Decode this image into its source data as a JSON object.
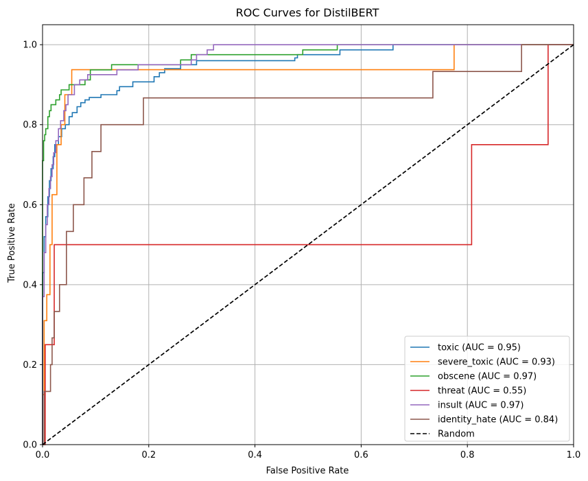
{
  "chart_data": {
    "type": "line",
    "title": "ROC Curves for DistilBERT",
    "xlabel": "False Positive Rate",
    "ylabel": "True Positive Rate",
    "xlim": [
      0,
      1
    ],
    "ylim": [
      0,
      1.05
    ],
    "xticks": [
      "0.0",
      "0.2",
      "0.4",
      "0.6",
      "0.8",
      "1.0"
    ],
    "yticks": [
      "0.0",
      "0.2",
      "0.4",
      "0.6",
      "0.8",
      "1.0"
    ],
    "grid": true,
    "legend_position": "lower-right",
    "series": [
      {
        "name": "toxic (AUC = 0.95)",
        "color": "#1f77b4",
        "style": "solid",
        "points": [
          [
            0,
            0
          ],
          [
            0,
            0.43
          ],
          [
            0.003,
            0.43
          ],
          [
            0.003,
            0.52
          ],
          [
            0.006,
            0.52
          ],
          [
            0.006,
            0.57
          ],
          [
            0.01,
            0.57
          ],
          [
            0.01,
            0.62
          ],
          [
            0.013,
            0.62
          ],
          [
            0.013,
            0.66
          ],
          [
            0.016,
            0.66
          ],
          [
            0.016,
            0.69
          ],
          [
            0.02,
            0.69
          ],
          [
            0.02,
            0.72
          ],
          [
            0.023,
            0.72
          ],
          [
            0.023,
            0.75
          ],
          [
            0.03,
            0.75
          ],
          [
            0.03,
            0.77
          ],
          [
            0.036,
            0.77
          ],
          [
            0.036,
            0.79
          ],
          [
            0.043,
            0.79
          ],
          [
            0.043,
            0.8
          ],
          [
            0.05,
            0.8
          ],
          [
            0.05,
            0.82
          ],
          [
            0.056,
            0.82
          ],
          [
            0.056,
            0.83
          ],
          [
            0.065,
            0.83
          ],
          [
            0.065,
            0.845
          ],
          [
            0.072,
            0.845
          ],
          [
            0.072,
            0.855
          ],
          [
            0.08,
            0.855
          ],
          [
            0.08,
            0.862
          ],
          [
            0.088,
            0.862
          ],
          [
            0.088,
            0.868
          ],
          [
            0.11,
            0.868
          ],
          [
            0.11,
            0.875
          ],
          [
            0.14,
            0.875
          ],
          [
            0.14,
            0.885
          ],
          [
            0.145,
            0.885
          ],
          [
            0.145,
            0.895
          ],
          [
            0.17,
            0.895
          ],
          [
            0.17,
            0.907
          ],
          [
            0.21,
            0.907
          ],
          [
            0.21,
            0.92
          ],
          [
            0.22,
            0.92
          ],
          [
            0.22,
            0.93
          ],
          [
            0.23,
            0.93
          ],
          [
            0.23,
            0.94
          ],
          [
            0.26,
            0.94
          ],
          [
            0.26,
            0.95
          ],
          [
            0.29,
            0.95
          ],
          [
            0.29,
            0.96
          ],
          [
            0.475,
            0.96
          ],
          [
            0.475,
            0.967
          ],
          [
            0.48,
            0.967
          ],
          [
            0.48,
            0.975
          ],
          [
            0.56,
            0.975
          ],
          [
            0.56,
            0.987
          ],
          [
            0.66,
            0.987
          ],
          [
            0.66,
            1.0
          ],
          [
            1.0,
            1.0
          ]
        ]
      },
      {
        "name": "severe_toxic (AUC = 0.93)",
        "color": "#ff7f0e",
        "style": "solid",
        "points": [
          [
            0,
            0
          ],
          [
            0,
            0.125
          ],
          [
            0.003,
            0.125
          ],
          [
            0.003,
            0.31
          ],
          [
            0.008,
            0.31
          ],
          [
            0.008,
            0.375
          ],
          [
            0.014,
            0.375
          ],
          [
            0.014,
            0.5
          ],
          [
            0.018,
            0.5
          ],
          [
            0.018,
            0.625
          ],
          [
            0.027,
            0.625
          ],
          [
            0.027,
            0.75
          ],
          [
            0.035,
            0.75
          ],
          [
            0.035,
            0.8
          ],
          [
            0.042,
            0.8
          ],
          [
            0.042,
            0.875
          ],
          [
            0.055,
            0.875
          ],
          [
            0.055,
            0.9375
          ],
          [
            0.775,
            0.9375
          ],
          [
            0.775,
            1.0
          ],
          [
            1.0,
            1.0
          ]
        ]
      },
      {
        "name": "obscene (AUC = 0.97)",
        "color": "#2ca02c",
        "style": "solid",
        "points": [
          [
            0,
            0
          ],
          [
            0,
            0.71
          ],
          [
            0.002,
            0.71
          ],
          [
            0.002,
            0.76
          ],
          [
            0.004,
            0.76
          ],
          [
            0.004,
            0.775
          ],
          [
            0.006,
            0.775
          ],
          [
            0.006,
            0.79
          ],
          [
            0.01,
            0.79
          ],
          [
            0.01,
            0.82
          ],
          [
            0.013,
            0.82
          ],
          [
            0.013,
            0.835
          ],
          [
            0.016,
            0.835
          ],
          [
            0.016,
            0.85
          ],
          [
            0.025,
            0.85
          ],
          [
            0.025,
            0.862
          ],
          [
            0.032,
            0.862
          ],
          [
            0.032,
            0.875
          ],
          [
            0.035,
            0.875
          ],
          [
            0.035,
            0.887
          ],
          [
            0.05,
            0.887
          ],
          [
            0.05,
            0.9
          ],
          [
            0.08,
            0.9
          ],
          [
            0.08,
            0.912
          ],
          [
            0.09,
            0.912
          ],
          [
            0.09,
            0.937
          ],
          [
            0.13,
            0.937
          ],
          [
            0.13,
            0.95
          ],
          [
            0.26,
            0.95
          ],
          [
            0.26,
            0.962
          ],
          [
            0.28,
            0.962
          ],
          [
            0.28,
            0.975
          ],
          [
            0.49,
            0.975
          ],
          [
            0.49,
            0.987
          ],
          [
            0.555,
            0.987
          ],
          [
            0.555,
            1.0
          ],
          [
            1.0,
            1.0
          ]
        ]
      },
      {
        "name": "threat (AUC = 0.55)",
        "color": "#d62728",
        "style": "solid",
        "points": [
          [
            0,
            0
          ],
          [
            0.005,
            0.0
          ],
          [
            0.005,
            0.25
          ],
          [
            0.022,
            0.25
          ],
          [
            0.022,
            0.5
          ],
          [
            0.808,
            0.5
          ],
          [
            0.808,
            0.75
          ],
          [
            0.952,
            0.75
          ],
          [
            0.952,
            1.0
          ],
          [
            1.0,
            1.0
          ]
        ]
      },
      {
        "name": "insult (AUC = 0.97)",
        "color": "#9467bd",
        "style": "solid",
        "points": [
          [
            0,
            0
          ],
          [
            0,
            0.37
          ],
          [
            0.003,
            0.37
          ],
          [
            0.003,
            0.48
          ],
          [
            0.006,
            0.48
          ],
          [
            0.006,
            0.55
          ],
          [
            0.009,
            0.55
          ],
          [
            0.009,
            0.6
          ],
          [
            0.012,
            0.6
          ],
          [
            0.012,
            0.64
          ],
          [
            0.015,
            0.64
          ],
          [
            0.015,
            0.67
          ],
          [
            0.018,
            0.67
          ],
          [
            0.018,
            0.7
          ],
          [
            0.021,
            0.7
          ],
          [
            0.021,
            0.73
          ],
          [
            0.025,
            0.73
          ],
          [
            0.025,
            0.76
          ],
          [
            0.03,
            0.76
          ],
          [
            0.03,
            0.79
          ],
          [
            0.034,
            0.79
          ],
          [
            0.034,
            0.81
          ],
          [
            0.04,
            0.81
          ],
          [
            0.04,
            0.835
          ],
          [
            0.044,
            0.835
          ],
          [
            0.044,
            0.85
          ],
          [
            0.048,
            0.85
          ],
          [
            0.048,
            0.875
          ],
          [
            0.06,
            0.875
          ],
          [
            0.06,
            0.9
          ],
          [
            0.07,
            0.9
          ],
          [
            0.07,
            0.912
          ],
          [
            0.085,
            0.912
          ],
          [
            0.085,
            0.925
          ],
          [
            0.14,
            0.925
          ],
          [
            0.14,
            0.937
          ],
          [
            0.18,
            0.937
          ],
          [
            0.18,
            0.95
          ],
          [
            0.28,
            0.95
          ],
          [
            0.28,
            0.962
          ],
          [
            0.29,
            0.962
          ],
          [
            0.29,
            0.975
          ],
          [
            0.31,
            0.975
          ],
          [
            0.31,
            0.987
          ],
          [
            0.322,
            0.987
          ],
          [
            0.322,
            1.0
          ],
          [
            1.0,
            1.0
          ]
        ]
      },
      {
        "name": "identity_hate (AUC = 0.84)",
        "color": "#8c564b",
        "style": "solid",
        "points": [
          [
            0,
            0
          ],
          [
            0,
            0.0
          ],
          [
            0.003,
            0.0
          ],
          [
            0.003,
            0.133
          ],
          [
            0.015,
            0.133
          ],
          [
            0.015,
            0.2
          ],
          [
            0.018,
            0.2
          ],
          [
            0.018,
            0.267
          ],
          [
            0.022,
            0.267
          ],
          [
            0.022,
            0.333
          ],
          [
            0.032,
            0.333
          ],
          [
            0.032,
            0.4
          ],
          [
            0.045,
            0.4
          ],
          [
            0.045,
            0.533
          ],
          [
            0.058,
            0.533
          ],
          [
            0.058,
            0.6
          ],
          [
            0.078,
            0.6
          ],
          [
            0.078,
            0.667
          ],
          [
            0.093,
            0.667
          ],
          [
            0.093,
            0.733
          ],
          [
            0.11,
            0.733
          ],
          [
            0.11,
            0.8
          ],
          [
            0.19,
            0.8
          ],
          [
            0.19,
            0.867
          ],
          [
            0.735,
            0.867
          ],
          [
            0.735,
            0.933
          ],
          [
            0.902,
            0.933
          ],
          [
            0.902,
            1.0
          ],
          [
            1.0,
            1.0
          ]
        ]
      },
      {
        "name": "Random",
        "color": "#000000",
        "style": "dashed",
        "points": [
          [
            0,
            0
          ],
          [
            1,
            1
          ]
        ]
      }
    ]
  }
}
